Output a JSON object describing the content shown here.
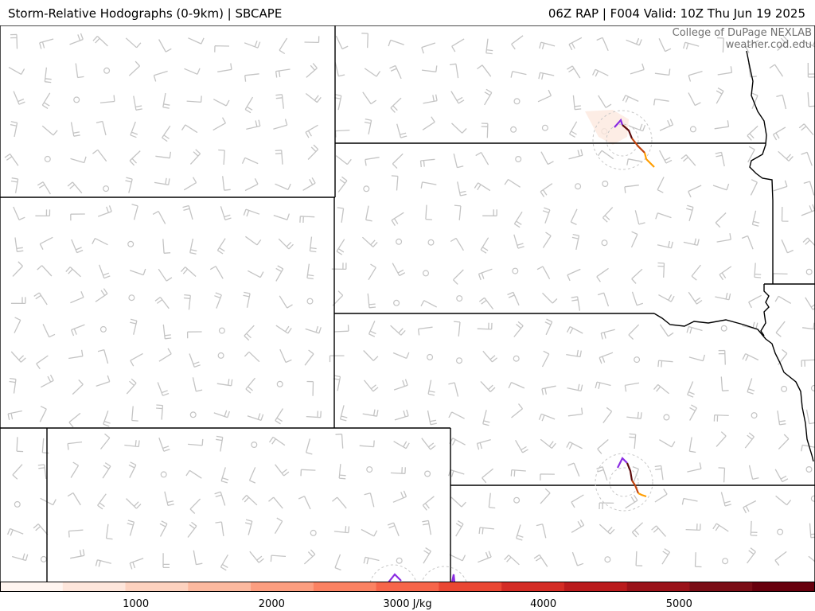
{
  "header": {
    "title": "Storm-Relative Hodographs (0-9km) | SBCAPE",
    "run_info": "06Z RAP | F004 Valid: 10Z Thu Jun 19 2025"
  },
  "credit": {
    "line1": "College of DuPage NEXLAB",
    "line2": "weather.cod.edu"
  },
  "colorbar": {
    "unit": "J/kg",
    "min": 0,
    "max": 6000,
    "ticks": [
      1000,
      2000,
      3000,
      4000,
      5000
    ],
    "tick_labels": [
      "1000",
      "2000",
      "3000 J/kg",
      "4000",
      "5000"
    ],
    "colors": [
      "#fff5f0",
      "#fee6db",
      "#fdd2bf",
      "#fcb99f",
      "#fc9e80",
      "#fb8262",
      "#f6654a",
      "#ea4733",
      "#d42c25",
      "#ba1b1d",
      "#9a1219",
      "#7a0d16",
      "#67000d"
    ]
  },
  "map": {
    "layers": [
      "wind-barbs",
      "hodographs",
      "state-borders"
    ],
    "hodograph_segment_colors": [
      "#8a2be2",
      "#5c0b0b",
      "#c1440e",
      "#ff9d00"
    ]
  }
}
